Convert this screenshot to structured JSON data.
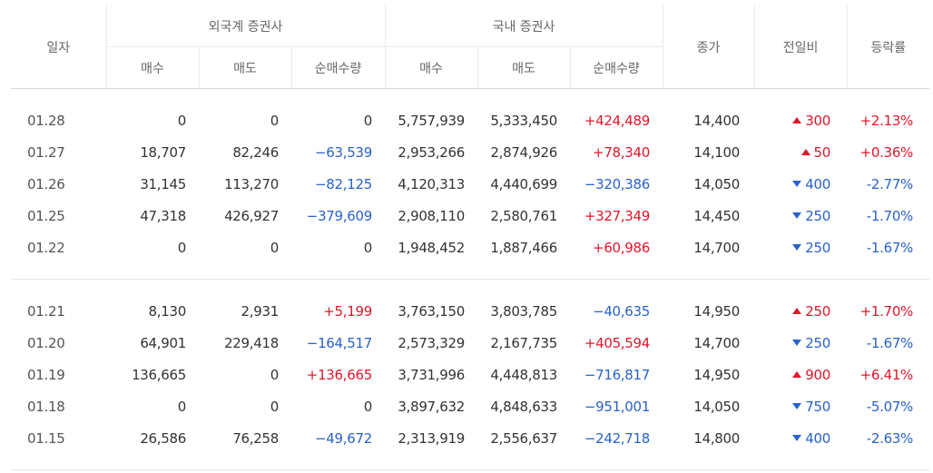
{
  "headers": {
    "date": "일자",
    "foreign_group": "외국계 증권사",
    "domestic_group": "국내 증권사",
    "close": "종가",
    "change": "전일비",
    "rate": "등락률",
    "buy": "매수",
    "sell": "매도",
    "net": "순매수량"
  },
  "colors": {
    "up": "#e0162b",
    "down": "#2962c9"
  },
  "groups": [
    {
      "rows": [
        {
          "date": "01.28",
          "f_buy": "0",
          "f_sell": "0",
          "f_net": "0",
          "f_dir": "flat",
          "d_buy": "5,757,939",
          "d_sell": "5,333,450",
          "d_net": "+424,489",
          "d_dir": "up",
          "close": "14,400",
          "change": "300",
          "change_dir": "up",
          "rate": "+2.13%"
        },
        {
          "date": "01.27",
          "f_buy": "18,707",
          "f_sell": "82,246",
          "f_net": "−63,539",
          "f_dir": "down",
          "d_buy": "2,953,266",
          "d_sell": "2,874,926",
          "d_net": "+78,340",
          "d_dir": "up",
          "close": "14,100",
          "change": "50",
          "change_dir": "up",
          "rate": "+0.36%"
        },
        {
          "date": "01.26",
          "f_buy": "31,145",
          "f_sell": "113,270",
          "f_net": "−82,125",
          "f_dir": "down",
          "d_buy": "4,120,313",
          "d_sell": "4,440,699",
          "d_net": "−320,386",
          "d_dir": "down",
          "close": "14,050",
          "change": "400",
          "change_dir": "down",
          "rate": "-2.77%"
        },
        {
          "date": "01.25",
          "f_buy": "47,318",
          "f_sell": "426,927",
          "f_net": "−379,609",
          "f_dir": "down",
          "d_buy": "2,908,110",
          "d_sell": "2,580,761",
          "d_net": "+327,349",
          "d_dir": "up",
          "close": "14,450",
          "change": "250",
          "change_dir": "down",
          "rate": "-1.70%"
        },
        {
          "date": "01.22",
          "f_buy": "0",
          "f_sell": "0",
          "f_net": "0",
          "f_dir": "flat",
          "d_buy": "1,948,452",
          "d_sell": "1,887,466",
          "d_net": "+60,986",
          "d_dir": "up",
          "close": "14,700",
          "change": "250",
          "change_dir": "down",
          "rate": "-1.67%"
        }
      ]
    },
    {
      "rows": [
        {
          "date": "01.21",
          "f_buy": "8,130",
          "f_sell": "2,931",
          "f_net": "+5,199",
          "f_dir": "up",
          "d_buy": "3,763,150",
          "d_sell": "3,803,785",
          "d_net": "−40,635",
          "d_dir": "down",
          "close": "14,950",
          "change": "250",
          "change_dir": "up",
          "rate": "+1.70%"
        },
        {
          "date": "01.20",
          "f_buy": "64,901",
          "f_sell": "229,418",
          "f_net": "−164,517",
          "f_dir": "down",
          "d_buy": "2,573,329",
          "d_sell": "2,167,735",
          "d_net": "+405,594",
          "d_dir": "up",
          "close": "14,700",
          "change": "250",
          "change_dir": "down",
          "rate": "-1.67%"
        },
        {
          "date": "01.19",
          "f_buy": "136,665",
          "f_sell": "0",
          "f_net": "+136,665",
          "f_dir": "up",
          "d_buy": "3,731,996",
          "d_sell": "4,448,813",
          "d_net": "−716,817",
          "d_dir": "down",
          "close": "14,950",
          "change": "900",
          "change_dir": "up",
          "rate": "+6.41%"
        },
        {
          "date": "01.18",
          "f_buy": "0",
          "f_sell": "0",
          "f_net": "0",
          "f_dir": "flat",
          "d_buy": "3,897,632",
          "d_sell": "4,848,633",
          "d_net": "−951,001",
          "d_dir": "down",
          "close": "14,050",
          "change": "750",
          "change_dir": "down",
          "rate": "-5.07%"
        },
        {
          "date": "01.15",
          "f_buy": "26,586",
          "f_sell": "76,258",
          "f_net": "−49,672",
          "f_dir": "down",
          "d_buy": "2,313,919",
          "d_sell": "2,556,637",
          "d_net": "−242,718",
          "d_dir": "down",
          "close": "14,800",
          "change": "400",
          "change_dir": "down",
          "rate": "-2.63%"
        }
      ]
    }
  ]
}
